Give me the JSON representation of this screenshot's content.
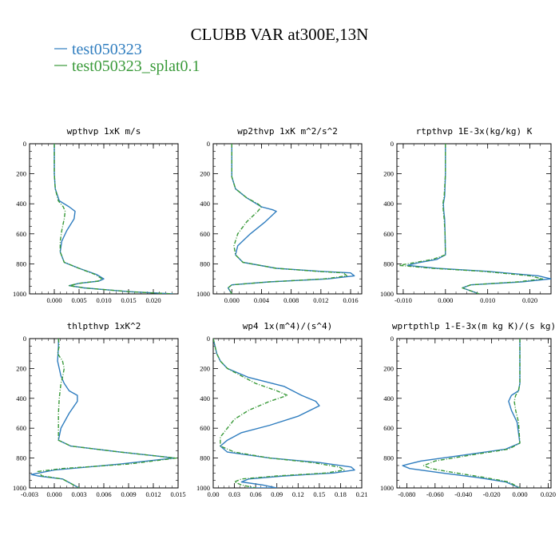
{
  "figure": {
    "title": "CLUBB VAR at300E,13N"
  },
  "legend": [
    {
      "name": "test050323",
      "color": "#2f7dbf"
    },
    {
      "name": "test050323_splat0.1",
      "color": "#3a9a3a"
    }
  ],
  "chart_data": [
    {
      "type": "line",
      "title": "wpthvp  1xK m/s",
      "xlim": [
        -0.005,
        0.025
      ],
      "ylim": [
        1000,
        0
      ],
      "xticks": [
        0.0,
        0.005,
        0.01,
        0.015,
        0.02
      ],
      "xtick_labels": [
        "0.000",
        "0.005",
        "0.010",
        "0.015",
        "0.020"
      ],
      "yticks": [
        0,
        200,
        400,
        600,
        800,
        1000
      ],
      "ytick_labels": [
        "0",
        "200",
        "400",
        "600",
        "800",
        "1000"
      ],
      "series": [
        {
          "name": "test050323",
          "color": "#2f7dbf",
          "x": [
            0.0,
            0.0,
            0.0002,
            0.001,
            0.003,
            0.0042,
            0.004,
            0.0025,
            0.0015,
            0.0012,
            0.002,
            0.005,
            0.0085,
            0.01,
            0.009,
            0.005,
            0.003,
            0.006,
            0.015,
            0.024
          ],
          "y": [
            0,
            200,
            300,
            380,
            420,
            450,
            500,
            580,
            650,
            720,
            790,
            830,
            870,
            900,
            915,
            930,
            945,
            960,
            985,
            1000
          ]
        },
        {
          "name": "test050323_splat0.1",
          "color": "#3a9a3a",
          "x": [
            0.0,
            0.0,
            0.0002,
            0.0008,
            0.0018,
            0.0022,
            0.002,
            0.0015,
            0.0012,
            0.0012,
            0.002,
            0.005,
            0.0082,
            0.0097,
            0.0088,
            0.005,
            0.003,
            0.006,
            0.015,
            0.024
          ],
          "y": [
            0,
            200,
            300,
            380,
            420,
            450,
            500,
            580,
            650,
            720,
            790,
            830,
            870,
            900,
            915,
            930,
            945,
            960,
            985,
            1000
          ]
        }
      ]
    },
    {
      "type": "line",
      "title": "wp2thvp  1xK m^2/s^2",
      "xlim": [
        -0.0025,
        0.0175
      ],
      "ylim": [
        1000,
        0
      ],
      "xticks": [
        0.0,
        0.004,
        0.008,
        0.012,
        0.016
      ],
      "xtick_labels": [
        "0.000",
        "0.004",
        "0.008",
        "0.012",
        "0.016"
      ],
      "yticks": [
        0,
        200,
        400,
        600,
        800,
        1000
      ],
      "ytick_labels": [
        "0",
        "200",
        "400",
        "600",
        "800",
        "1000"
      ],
      "series": [
        {
          "name": "test050323",
          "color": "#2f7dbf",
          "x": [
            0.0,
            0.0,
            0.0005,
            0.002,
            0.004,
            0.0055,
            0.006,
            0.0045,
            0.0025,
            0.0008,
            0.0005,
            0.0015,
            0.006,
            0.012,
            0.016,
            0.0165,
            0.013,
            0.005,
            0.0,
            -0.0005,
            0.0
          ],
          "y": [
            0,
            220,
            300,
            360,
            420,
            440,
            450,
            520,
            600,
            680,
            740,
            790,
            830,
            850,
            860,
            880,
            900,
            920,
            940,
            960,
            1000
          ]
        },
        {
          "name": "test050323_splat0.1",
          "color": "#3a9a3a",
          "x": [
            0.0,
            0.0,
            0.0005,
            0.002,
            0.0035,
            0.004,
            0.0035,
            0.002,
            0.0008,
            0.0003,
            0.0005,
            0.0015,
            0.006,
            0.0115,
            0.015,
            0.0155,
            0.0125,
            0.005,
            0.0,
            -0.0005,
            0.0
          ],
          "y": [
            0,
            220,
            300,
            360,
            400,
            420,
            450,
            520,
            600,
            680,
            740,
            790,
            830,
            850,
            860,
            880,
            900,
            920,
            940,
            960,
            1000
          ]
        }
      ]
    },
    {
      "type": "line",
      "title": "rtpthvp  1E-3x(kg/kg) K",
      "xlim": [
        -0.0115,
        0.025
      ],
      "ylim": [
        1000,
        0
      ],
      "xticks": [
        -0.01,
        0.0,
        0.01,
        0.02
      ],
      "xtick_labels": [
        "-0.010",
        "0.000",
        "0.010",
        "0.020"
      ],
      "yticks": [
        0,
        200,
        400,
        600,
        800,
        1000
      ],
      "ytick_labels": [
        "0",
        "200",
        "400",
        "600",
        "800",
        "1000"
      ],
      "series": [
        {
          "name": "test050323",
          "color": "#2f7dbf",
          "x": [
            0.0,
            0.0,
            -0.0002,
            -0.0005,
            -0.0004,
            -0.0002,
            -0.0001,
            0.0,
            -0.002,
            -0.006,
            -0.009,
            -0.002,
            0.01,
            0.022,
            0.025,
            0.018,
            0.006,
            0.004,
            0.008
          ],
          "y": [
            0,
            200,
            350,
            400,
            450,
            500,
            600,
            740,
            770,
            790,
            810,
            830,
            850,
            880,
            900,
            920,
            940,
            960,
            1000
          ]
        },
        {
          "name": "test050323_splat0.1",
          "color": "#3a9a3a",
          "x": [
            0.0,
            0.0,
            -0.0003,
            -0.0006,
            -0.0005,
            -0.0003,
            -0.0001,
            0.0,
            -0.003,
            -0.007,
            -0.011,
            -0.003,
            0.009,
            0.02,
            0.023,
            0.017,
            0.006,
            0.004,
            0.008
          ],
          "y": [
            0,
            200,
            350,
            400,
            450,
            500,
            600,
            740,
            770,
            790,
            810,
            830,
            850,
            880,
            900,
            920,
            940,
            960,
            1000
          ]
        }
      ]
    },
    {
      "type": "line",
      "title": "thlpthvp  1xK^2",
      "xlim": [
        -0.003,
        0.015
      ],
      "ylim": [
        1000,
        0
      ],
      "xticks": [
        -0.003,
        0.0,
        0.003,
        0.006,
        0.009,
        0.012,
        0.015
      ],
      "xtick_labels": [
        "-0.003",
        "0.000",
        "0.003",
        "0.006",
        "0.009",
        "0.012",
        "0.015"
      ],
      "yticks": [
        0,
        200,
        400,
        600,
        800,
        1000
      ],
      "ytick_labels": [
        "0",
        "200",
        "400",
        "600",
        "800",
        "1000"
      ],
      "series": [
        {
          "name": "test050323",
          "color": "#2f7dbf",
          "x": [
            0.0005,
            0.0005,
            0.0004,
            0.0008,
            0.0012,
            0.0018,
            0.0028,
            0.0028,
            0.0018,
            0.0008,
            0.0005,
            0.002,
            0.008,
            0.013,
            0.0145,
            0.008,
            0.0,
            -0.0028,
            -0.002,
            0.001,
            0.002,
            0.003
          ],
          "y": [
            0,
            50,
            150,
            250,
            300,
            350,
            380,
            420,
            500,
            600,
            680,
            720,
            760,
            790,
            800,
            840,
            880,
            910,
            920,
            940,
            970,
            1000
          ]
        },
        {
          "name": "test050323_splat0.1",
          "color": "#3a9a3a",
          "x": [
            0.0005,
            0.0006,
            0.0004,
            0.001,
            0.0012,
            0.001,
            0.0008,
            0.0006,
            0.0005,
            0.0005,
            0.0005,
            0.002,
            0.008,
            0.013,
            0.0148,
            0.009,
            0.001,
            -0.002,
            -0.0015,
            0.001,
            0.002,
            0.003
          ],
          "y": [
            0,
            50,
            100,
            150,
            200,
            260,
            300,
            400,
            500,
            600,
            680,
            720,
            760,
            790,
            800,
            840,
            870,
            890,
            920,
            940,
            970,
            1000
          ]
        }
      ]
    },
    {
      "type": "line",
      "title": "wp4  1x(m^4)/(s^4)",
      "xlim": [
        0.0,
        0.21
      ],
      "ylim": [
        1000,
        0
      ],
      "xticks": [
        0.0,
        0.03,
        0.06,
        0.09,
        0.12,
        0.15,
        0.18,
        0.21
      ],
      "xtick_labels": [
        "0.00",
        "0.03",
        "0.06",
        "0.09",
        "0.12",
        "0.15",
        "0.18",
        "0.21"
      ],
      "yticks": [
        0,
        200,
        400,
        600,
        800,
        1000
      ],
      "ytick_labels": [
        "0",
        "200",
        "400",
        "600",
        "800",
        "1000"
      ],
      "series": [
        {
          "name": "test050323",
          "color": "#2f7dbf",
          "x": [
            0.0,
            0.005,
            0.01,
            0.02,
            0.05,
            0.1,
            0.125,
            0.145,
            0.15,
            0.12,
            0.08,
            0.04,
            0.02,
            0.01,
            0.02,
            0.08,
            0.15,
            0.195,
            0.2,
            0.17,
            0.1,
            0.05,
            0.04,
            0.07,
            0.09,
            0.05
          ],
          "y": [
            0,
            100,
            150,
            200,
            260,
            320,
            380,
            420,
            450,
            520,
            580,
            630,
            680,
            720,
            760,
            800,
            830,
            860,
            880,
            900,
            920,
            940,
            960,
            980,
            1000,
            1000
          ]
        },
        {
          "name": "test050323_splat0.1",
          "color": "#3a9a3a",
          "x": [
            0.0,
            0.005,
            0.01,
            0.02,
            0.04,
            0.06,
            0.09,
            0.105,
            0.08,
            0.05,
            0.03,
            0.02,
            0.01,
            0.01,
            0.03,
            0.08,
            0.14,
            0.178,
            0.185,
            0.16,
            0.09,
            0.04,
            0.03,
            0.04,
            0.06
          ],
          "y": [
            0,
            100,
            150,
            200,
            250,
            300,
            350,
            380,
            420,
            480,
            540,
            600,
            660,
            720,
            760,
            800,
            830,
            860,
            880,
            900,
            920,
            940,
            960,
            980,
            1000
          ]
        }
      ]
    },
    {
      "type": "line",
      "title": "wprtpthlp  1-E-3x(m kg K)/(s kg)",
      "xlim": [
        -0.087,
        0.022
      ],
      "ylim": [
        1000,
        0
      ],
      "xticks": [
        -0.08,
        -0.06,
        -0.04,
        -0.02,
        0.0,
        0.02
      ],
      "xtick_labels": [
        "-0.080",
        "-0.060",
        "-0.040",
        "-0.020",
        "0.000",
        "0.020"
      ],
      "yticks": [
        0,
        200,
        400,
        600,
        800,
        1000
      ],
      "ytick_labels": [
        "0",
        "200",
        "400",
        "600",
        "800",
        "1000"
      ],
      "series": [
        {
          "name": "test050323",
          "color": "#2f7dbf",
          "x": [
            0.0,
            0.0,
            -0.001,
            -0.006,
            -0.008,
            -0.006,
            -0.002,
            0.0,
            -0.01,
            -0.04,
            -0.07,
            -0.083,
            -0.078,
            -0.055,
            -0.03,
            -0.01,
            0.0
          ],
          "y": [
            0,
            300,
            350,
            380,
            420,
            480,
            560,
            700,
            740,
            780,
            820,
            850,
            870,
            900,
            930,
            960,
            1000
          ]
        },
        {
          "name": "test050323_splat0.1",
          "color": "#3a9a3a",
          "x": [
            0.0,
            0.0,
            -0.001,
            -0.003,
            -0.004,
            -0.003,
            -0.001,
            0.0,
            -0.008,
            -0.035,
            -0.06,
            -0.068,
            -0.063,
            -0.045,
            -0.025,
            -0.008,
            0.0
          ],
          "y": [
            0,
            300,
            350,
            380,
            420,
            480,
            560,
            700,
            740,
            780,
            820,
            850,
            870,
            900,
            930,
            960,
            1000
          ]
        }
      ]
    }
  ]
}
